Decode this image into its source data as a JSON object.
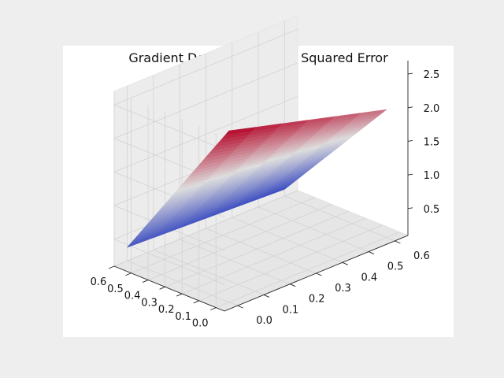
{
  "window": {
    "background": "#eeeeee",
    "panel": "#ffffff"
  },
  "chart_data": {
    "type": "surface",
    "title": "Gradient Descent by Mean Squared Error",
    "xlabel": "",
    "ylabel": "",
    "zlabel": "",
    "xlim": [
      -0.05,
      0.6
    ],
    "ylim": [
      -0.05,
      0.65
    ],
    "zlim": [
      0.1,
      2.7
    ],
    "x_ticks": [
      "0.0",
      "0.1",
      "0.2",
      "0.3",
      "0.4",
      "0.5",
      "0.6"
    ],
    "y_ticks": [
      "0.0",
      "0.1",
      "0.2",
      "0.3",
      "0.4",
      "0.5",
      "0.6"
    ],
    "z_ticks": [
      "0.5",
      "1.0",
      "1.5",
      "2.0",
      "2.5"
    ],
    "x_tick_values": [
      0.0,
      0.1,
      0.2,
      0.3,
      0.4,
      0.5,
      0.6
    ],
    "y_tick_values": [
      0.0,
      0.1,
      0.2,
      0.3,
      0.4,
      0.5,
      0.6
    ],
    "z_tick_values": [
      0.5,
      1.0,
      1.5,
      2.0,
      2.5
    ],
    "grid": true,
    "colormap": "coolwarm",
    "colormap_stops": [
      "#3b4cc0",
      "#dddddd",
      "#b40426"
    ],
    "surface": {
      "x_values": [
        0.0,
        0.6
      ],
      "y_values": [
        0.0,
        0.6
      ],
      "z": [
        [
          2.65,
          2.0
        ],
        [
          0.3,
          0.2
        ]
      ]
    }
  }
}
